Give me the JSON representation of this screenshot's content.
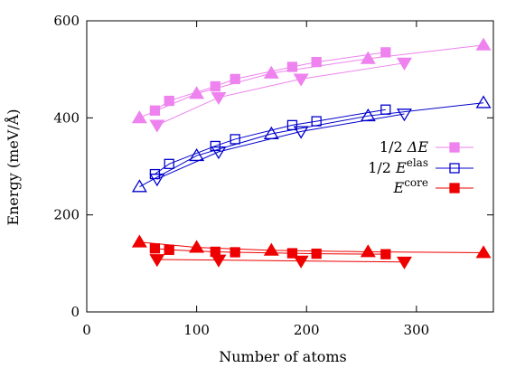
{
  "chart_data": {
    "type": "line",
    "xlabel": "Number of atoms",
    "ylabel": "Energy  (meV/Å)",
    "xlim": [
      0,
      370
    ],
    "ylim": [
      0,
      600
    ],
    "xticks": [
      0,
      100,
      200,
      300
    ],
    "yticks": [
      0,
      200,
      400,
      600
    ],
    "grid": false,
    "legend_position": "right-middle",
    "legend": [
      {
        "prefix": "1/2 ",
        "main": "ΔE",
        "sup": "",
        "color": "#ee82ee",
        "marker": "square-filled"
      },
      {
        "prefix": "1/2 ",
        "main": "E",
        "sup": "elas",
        "color": "#0000cc",
        "marker": "square-open"
      },
      {
        "prefix": "",
        "main": "E",
        "sup": "core",
        "color": "#ee0000",
        "marker": "square-filled"
      }
    ],
    "series": [
      {
        "group": "1/2 ΔE",
        "marker": "square-filled",
        "color": "#ee82ee",
        "x": [
          62,
          75,
          117,
          135,
          187,
          209,
          272
        ],
        "y": [
          415,
          435,
          465,
          480,
          505,
          515,
          535
        ]
      },
      {
        "group": "1/2 ΔE",
        "marker": "triangle-up-filled",
        "color": "#ee82ee",
        "x": [
          48,
          100,
          168,
          256,
          361
        ],
        "y": [
          400,
          450,
          492,
          522,
          550
        ]
      },
      {
        "group": "1/2 ΔE",
        "marker": "triangle-down-filled",
        "color": "#ee82ee",
        "x": [
          64,
          120,
          195,
          289
        ],
        "y": [
          385,
          442,
          480,
          513
        ]
      },
      {
        "group": "1/2 Eelas",
        "marker": "square-open",
        "color": "#0000cc",
        "x": [
          62,
          75,
          117,
          135,
          187,
          209,
          272
        ],
        "y": [
          284,
          305,
          342,
          356,
          385,
          393,
          417
        ]
      },
      {
        "group": "1/2 Eelas",
        "marker": "triangle-up-open",
        "color": "#0000cc",
        "x": [
          48,
          100,
          168,
          256,
          361
        ],
        "y": [
          258,
          322,
          367,
          404,
          431
        ]
      },
      {
        "group": "1/2 Eelas",
        "marker": "triangle-down-open",
        "color": "#0000cc",
        "x": [
          64,
          120,
          195,
          289
        ],
        "y": [
          274,
          330,
          372,
          408
        ]
      },
      {
        "group": "Ecore",
        "marker": "square-filled",
        "color": "#ee0000",
        "x": [
          62,
          75,
          117,
          135,
          187,
          209,
          272
        ],
        "y": [
          131,
          128,
          124,
          123,
          121,
          120,
          119
        ]
      },
      {
        "group": "Ecore",
        "marker": "triangle-up-filled",
        "color": "#ee0000",
        "x": [
          48,
          100,
          168,
          256,
          361
        ],
        "y": [
          144,
          133,
          127,
          124,
          122
        ]
      },
      {
        "group": "Ecore",
        "marker": "triangle-down-filled",
        "color": "#ee0000",
        "x": [
          64,
          120,
          195,
          289
        ],
        "y": [
          108,
          107,
          105,
          103
        ]
      }
    ]
  }
}
